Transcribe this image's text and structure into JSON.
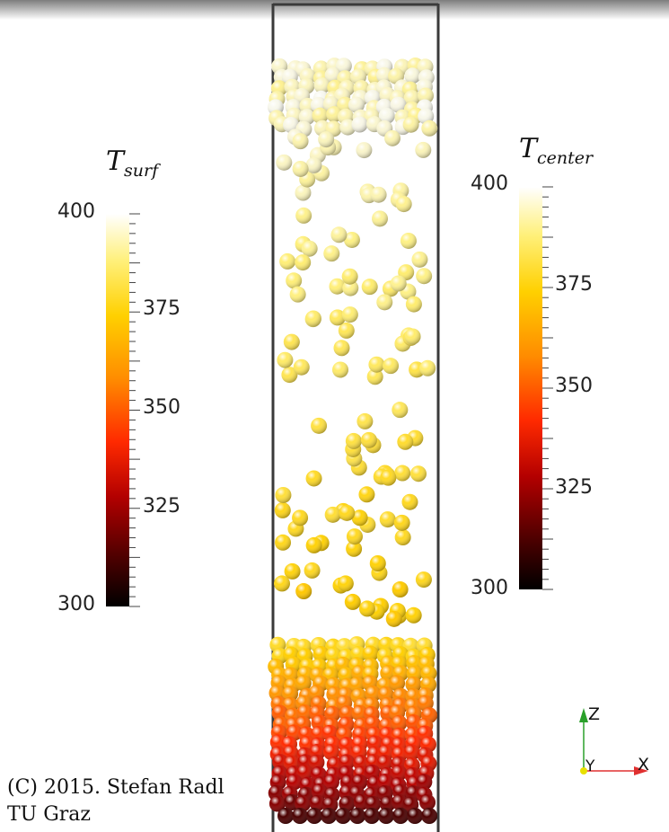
{
  "left_colorbar": {
    "title_main": "T",
    "title_sub": "surf",
    "min_label": "300",
    "max_label": "400",
    "tick_labels": [
      "375",
      "350",
      "325"
    ],
    "range": [
      300,
      400
    ],
    "ticks": [
      375,
      350,
      325
    ]
  },
  "right_colorbar": {
    "title_main": "T",
    "title_sub": "center",
    "min_label": "300",
    "max_label": "400",
    "tick_labels": [
      "375",
      "350",
      "325"
    ],
    "range": [
      300,
      400
    ],
    "ticks": [
      375,
      350,
      325
    ]
  },
  "axes_triad": {
    "z": "Z",
    "y": "Y",
    "x": "X"
  },
  "copyright": {
    "line1": "(C) 2015. Stefan Radl",
    "line2": "TU Graz"
  },
  "colors": {
    "colormap": [
      "#000000",
      "#5c0000",
      "#c80000",
      "#ff4400",
      "#ff9900",
      "#ffd400",
      "#fff38a",
      "#ffffff"
    ],
    "container_outline": "#3a3a3a",
    "z_axis": "#2aa02a",
    "x_axis": "#e03030",
    "y_axis": "#e8e000"
  }
}
